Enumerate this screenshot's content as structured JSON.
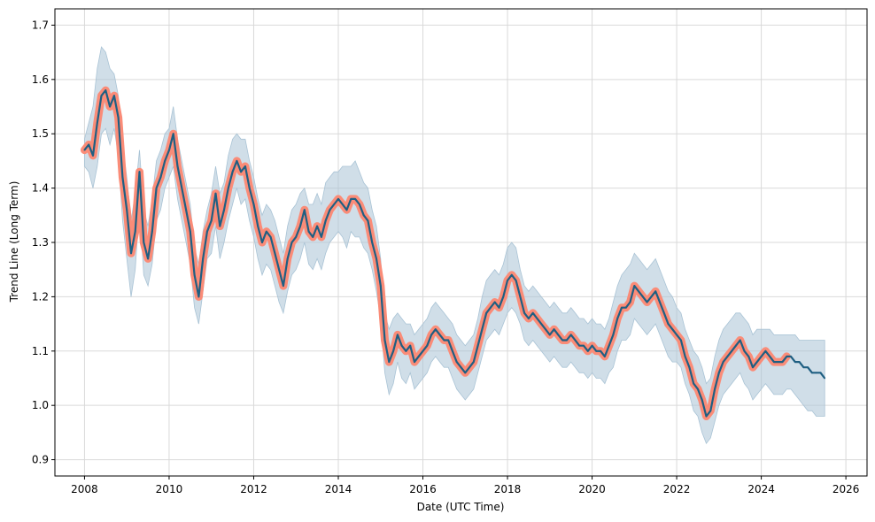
{
  "chart_data": {
    "type": "line",
    "title": "",
    "xlabel": "Date (UTC Time)",
    "ylabel": "Trend Line (Long Term)",
    "xlim": [
      2007.3,
      2026.5
    ],
    "ylim": [
      0.87,
      1.73
    ],
    "grid": true,
    "x_ticks": [
      2008,
      2010,
      2012,
      2014,
      2016,
      2018,
      2020,
      2022,
      2024,
      2026
    ],
    "y_ticks": [
      0.9,
      1.0,
      1.1,
      1.2,
      1.3,
      1.4,
      1.5,
      1.6,
      1.7
    ],
    "colors": {
      "line": "#1f5f82",
      "highlight": "#fa8c78",
      "band": "#a9c3d5",
      "grid": "#d9d9d9"
    },
    "series": [
      {
        "x": [
          2008.0,
          2008.1,
          2008.2,
          2008.3,
          2008.4,
          2008.5,
          2008.6,
          2008.7,
          2008.8,
          2008.9,
          2009.0,
          2009.1,
          2009.2,
          2009.3,
          2009.4,
          2009.5,
          2009.6,
          2009.7,
          2009.8,
          2009.9,
          2010.0,
          2010.1,
          2010.2,
          2010.3,
          2010.4,
          2010.5,
          2010.6,
          2010.7,
          2010.8,
          2010.9,
          2011.0,
          2011.1,
          2011.2,
          2011.3,
          2011.4,
          2011.5,
          2011.6,
          2011.7,
          2011.8,
          2011.9,
          2012.0,
          2012.1,
          2012.2,
          2012.3,
          2012.4,
          2012.5,
          2012.6,
          2012.7,
          2012.8,
          2012.9,
          2013.0,
          2013.1,
          2013.2,
          2013.3,
          2013.4,
          2013.5,
          2013.6,
          2013.7,
          2013.8,
          2013.9,
          2014.0,
          2014.1,
          2014.2,
          2014.3,
          2014.4,
          2014.5,
          2014.6,
          2014.7,
          2014.8,
          2014.9,
          2015.0,
          2015.1,
          2015.2,
          2015.3,
          2015.4,
          2015.5,
          2015.6,
          2015.7,
          2015.8,
          2015.9,
          2016.0,
          2016.1,
          2016.2,
          2016.3,
          2016.4,
          2016.5,
          2016.6,
          2016.7,
          2016.8,
          2016.9,
          2017.0,
          2017.1,
          2017.2,
          2017.3,
          2017.4,
          2017.5,
          2017.6,
          2017.7,
          2017.8,
          2017.9,
          2018.0,
          2018.1,
          2018.2,
          2018.3,
          2018.4,
          2018.5,
          2018.6,
          2018.7,
          2018.8,
          2018.9,
          2019.0,
          2019.1,
          2019.2,
          2019.3,
          2019.4,
          2019.5,
          2019.6,
          2019.7,
          2019.8,
          2019.9,
          2020.0,
          2020.1,
          2020.2,
          2020.3,
          2020.4,
          2020.5,
          2020.6,
          2020.7,
          2020.8,
          2020.9,
          2021.0,
          2021.1,
          2021.2,
          2021.3,
          2021.4,
          2021.5,
          2021.6,
          2021.7,
          2021.8,
          2021.9,
          2022.0,
          2022.1,
          2022.2,
          2022.3,
          2022.4,
          2022.5,
          2022.6,
          2022.7,
          2022.8,
          2022.9,
          2023.0,
          2023.1,
          2023.2,
          2023.3,
          2023.4,
          2023.5,
          2023.6,
          2023.7,
          2023.8,
          2023.9,
          2024.0,
          2024.1,
          2024.2,
          2024.3,
          2024.4,
          2024.5,
          2024.6,
          2024.7,
          2024.8,
          2024.9,
          2025.0,
          2025.1,
          2025.2,
          2025.3,
          2025.4,
          2025.5
        ],
        "y": [
          1.47,
          1.48,
          1.46,
          1.52,
          1.57,
          1.58,
          1.55,
          1.57,
          1.53,
          1.42,
          1.36,
          1.28,
          1.32,
          1.43,
          1.3,
          1.27,
          1.32,
          1.4,
          1.42,
          1.45,
          1.47,
          1.5,
          1.44,
          1.4,
          1.36,
          1.32,
          1.24,
          1.2,
          1.27,
          1.32,
          1.34,
          1.39,
          1.33,
          1.36,
          1.4,
          1.43,
          1.45,
          1.43,
          1.44,
          1.4,
          1.37,
          1.33,
          1.3,
          1.32,
          1.31,
          1.28,
          1.25,
          1.22,
          1.27,
          1.3,
          1.31,
          1.33,
          1.36,
          1.32,
          1.31,
          1.33,
          1.31,
          1.34,
          1.36,
          1.37,
          1.38,
          1.37,
          1.36,
          1.38,
          1.38,
          1.37,
          1.35,
          1.34,
          1.3,
          1.27,
          1.22,
          1.12,
          1.08,
          1.1,
          1.13,
          1.11,
          1.1,
          1.11,
          1.08,
          1.09,
          1.1,
          1.11,
          1.13,
          1.14,
          1.13,
          1.12,
          1.12,
          1.1,
          1.08,
          1.07,
          1.06,
          1.07,
          1.08,
          1.11,
          1.14,
          1.17,
          1.18,
          1.19,
          1.18,
          1.2,
          1.23,
          1.24,
          1.23,
          1.2,
          1.17,
          1.16,
          1.17,
          1.16,
          1.15,
          1.14,
          1.13,
          1.14,
          1.13,
          1.12,
          1.12,
          1.13,
          1.12,
          1.11,
          1.11,
          1.1,
          1.11,
          1.1,
          1.1,
          1.09,
          1.11,
          1.13,
          1.16,
          1.18,
          1.18,
          1.19,
          1.22,
          1.21,
          1.2,
          1.19,
          1.2,
          1.21,
          1.19,
          1.17,
          1.15,
          1.14,
          1.13,
          1.12,
          1.09,
          1.07,
          1.04,
          1.03,
          1.01,
          0.98,
          0.99,
          1.03,
          1.06,
          1.08,
          1.09,
          1.1,
          1.11,
          1.12,
          1.1,
          1.09,
          1.07,
          1.08,
          1.09,
          1.1,
          1.09,
          1.08,
          1.08,
          1.08,
          1.09,
          1.09,
          1.08,
          1.08,
          1.07,
          1.07,
          1.06,
          1.06,
          1.06,
          1.05
        ],
        "upper": [
          1.49,
          1.52,
          1.55,
          1.62,
          1.66,
          1.65,
          1.62,
          1.61,
          1.57,
          1.48,
          1.42,
          1.34,
          1.39,
          1.47,
          1.36,
          1.33,
          1.38,
          1.45,
          1.47,
          1.5,
          1.51,
          1.55,
          1.49,
          1.45,
          1.41,
          1.37,
          1.29,
          1.26,
          1.32,
          1.36,
          1.39,
          1.44,
          1.39,
          1.41,
          1.46,
          1.49,
          1.5,
          1.49,
          1.49,
          1.45,
          1.42,
          1.38,
          1.35,
          1.37,
          1.36,
          1.34,
          1.31,
          1.28,
          1.33,
          1.36,
          1.37,
          1.39,
          1.4,
          1.37,
          1.37,
          1.39,
          1.37,
          1.41,
          1.42,
          1.43,
          1.43,
          1.44,
          1.44,
          1.44,
          1.45,
          1.43,
          1.41,
          1.4,
          1.36,
          1.33,
          1.27,
          1.17,
          1.14,
          1.16,
          1.17,
          1.16,
          1.15,
          1.15,
          1.13,
          1.14,
          1.15,
          1.16,
          1.18,
          1.19,
          1.18,
          1.17,
          1.16,
          1.15,
          1.13,
          1.12,
          1.11,
          1.12,
          1.13,
          1.16,
          1.2,
          1.23,
          1.24,
          1.25,
          1.24,
          1.26,
          1.29,
          1.3,
          1.29,
          1.25,
          1.22,
          1.21,
          1.22,
          1.21,
          1.2,
          1.19,
          1.18,
          1.19,
          1.18,
          1.17,
          1.17,
          1.18,
          1.17,
          1.16,
          1.16,
          1.15,
          1.16,
          1.15,
          1.15,
          1.14,
          1.16,
          1.19,
          1.22,
          1.24,
          1.25,
          1.26,
          1.28,
          1.27,
          1.26,
          1.25,
          1.26,
          1.27,
          1.25,
          1.23,
          1.21,
          1.2,
          1.18,
          1.17,
          1.14,
          1.12,
          1.1,
          1.09,
          1.07,
          1.04,
          1.05,
          1.09,
          1.12,
          1.14,
          1.15,
          1.16,
          1.17,
          1.17,
          1.16,
          1.15,
          1.13,
          1.14,
          1.14,
          1.14,
          1.14,
          1.13,
          1.13,
          1.13,
          1.13,
          1.13,
          1.13,
          1.12,
          1.12,
          1.12,
          1.12,
          1.12,
          1.12,
          1.12
        ],
        "lower": [
          1.44,
          1.43,
          1.4,
          1.44,
          1.5,
          1.51,
          1.48,
          1.51,
          1.46,
          1.34,
          1.27,
          1.2,
          1.25,
          1.37,
          1.24,
          1.22,
          1.26,
          1.34,
          1.36,
          1.4,
          1.42,
          1.44,
          1.38,
          1.34,
          1.3,
          1.26,
          1.18,
          1.15,
          1.21,
          1.27,
          1.28,
          1.33,
          1.27,
          1.3,
          1.34,
          1.37,
          1.4,
          1.37,
          1.38,
          1.34,
          1.31,
          1.27,
          1.24,
          1.26,
          1.25,
          1.22,
          1.19,
          1.17,
          1.21,
          1.24,
          1.25,
          1.27,
          1.3,
          1.26,
          1.25,
          1.27,
          1.25,
          1.28,
          1.3,
          1.31,
          1.32,
          1.31,
          1.29,
          1.32,
          1.31,
          1.31,
          1.29,
          1.28,
          1.25,
          1.21,
          1.16,
          1.06,
          1.02,
          1.04,
          1.08,
          1.05,
          1.04,
          1.06,
          1.03,
          1.04,
          1.05,
          1.06,
          1.08,
          1.09,
          1.08,
          1.07,
          1.07,
          1.05,
          1.03,
          1.02,
          1.01,
          1.02,
          1.03,
          1.06,
          1.09,
          1.12,
          1.13,
          1.14,
          1.13,
          1.15,
          1.17,
          1.18,
          1.17,
          1.15,
          1.12,
          1.11,
          1.12,
          1.11,
          1.1,
          1.09,
          1.08,
          1.09,
          1.08,
          1.07,
          1.07,
          1.08,
          1.07,
          1.06,
          1.06,
          1.05,
          1.06,
          1.05,
          1.05,
          1.04,
          1.06,
          1.07,
          1.1,
          1.12,
          1.12,
          1.13,
          1.16,
          1.15,
          1.14,
          1.13,
          1.14,
          1.15,
          1.13,
          1.11,
          1.09,
          1.08,
          1.08,
          1.07,
          1.04,
          1.02,
          0.99,
          0.98,
          0.95,
          0.93,
          0.94,
          0.97,
          1.0,
          1.02,
          1.03,
          1.04,
          1.05,
          1.06,
          1.04,
          1.03,
          1.01,
          1.02,
          1.03,
          1.04,
          1.03,
          1.02,
          1.02,
          1.02,
          1.03,
          1.03,
          1.02,
          1.01,
          1.0,
          0.99,
          0.99,
          0.98,
          0.98,
          0.98
        ]
      }
    ],
    "highlight_until": 2024.6
  }
}
